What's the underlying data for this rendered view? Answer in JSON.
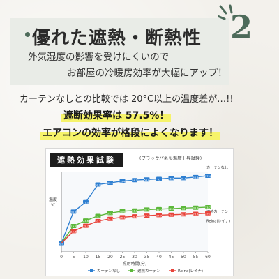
{
  "header": {
    "title": "優れた遮熱・断熱性",
    "subtitle_line1": "外気湿度の影響を受けにくいので",
    "subtitle_line2": "お部屋の冷暖房効率が大幅にアップ！",
    "badge_number": "2"
  },
  "body": {
    "comparison": "カーテンなしとの比較では 20°C以上の温度差が…!!",
    "highlight1": "遮断効果率は 57.5%！",
    "highlight2": "エアコンの効率が格段によくなります！"
  },
  "colors": {
    "accent": "#4d6b5a",
    "highlight": "#f6f36a",
    "series_no_curtain": "#2e7fd1",
    "series_blackout": "#5cb83a",
    "series_reina": "#e8433a"
  },
  "chart_data": {
    "type": "line",
    "title": "遮熱効果試験",
    "note": "（ブラックパネル温度上昇試験）",
    "xlabel": "照射時間(分)",
    "ylabel": "温度℃",
    "x": [
      0,
      5,
      10,
      15,
      20,
      25,
      30,
      35,
      40,
      45,
      50,
      55,
      60
    ],
    "xlim": [
      0,
      60
    ],
    "ylim": [
      0,
      60
    ],
    "series": [
      {
        "name": "カーテンなし",
        "label": "カーテンなし",
        "legend": "カーテンなし",
        "values": [
          6.6,
          30.3,
          37.5,
          50.8,
          52.1,
          53.4,
          54.1,
          54.6,
          55.0,
          55.6,
          55.6,
          56.4,
          57.4
        ]
      },
      {
        "name": "遮熱カーテン",
        "label": "遮熱カーテン",
        "legend": "遮熱カーテン",
        "values": [
          6.6,
          19.5,
          23.6,
          27.1,
          29.3,
          30.6,
          31.2,
          31.9,
          32.2,
          32.6,
          33.0,
          33.3,
          33.7
        ]
      },
      {
        "name": "Reina(レイナ)",
        "label": "Reina(レイナ)",
        "legend": "Reina(レイナ)",
        "values": [
          6.6,
          15.6,
          19.7,
          23.2,
          24.9,
          26.1,
          26.8,
          27.3,
          27.7,
          28.0,
          28.3,
          28.7,
          29.1
        ]
      }
    ],
    "legend_position": "bottom"
  }
}
